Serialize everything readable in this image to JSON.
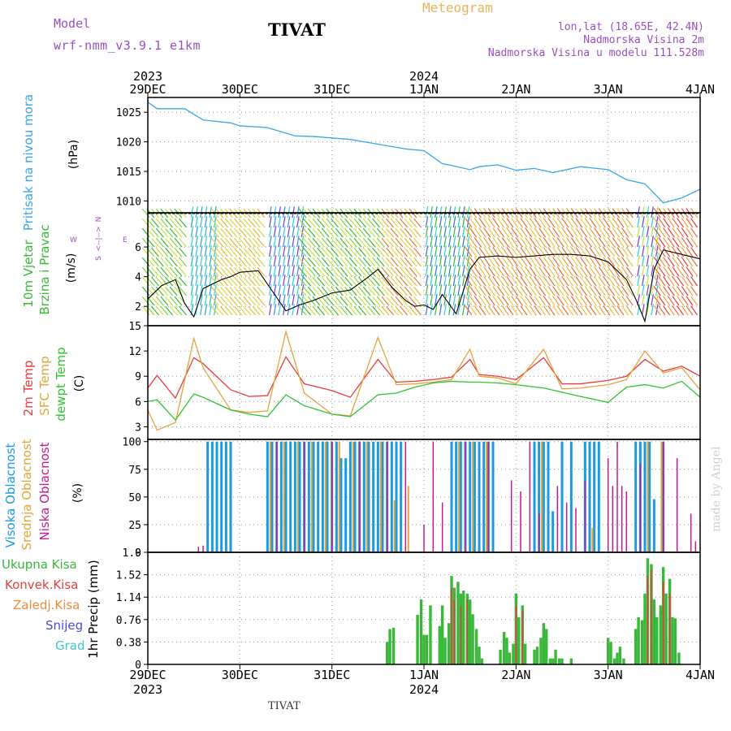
{
  "header": {
    "model_label": "Model",
    "model_name": "wrf-nmm_v3.9.1 e1km",
    "station": "TIVAT",
    "meteogram": "Meteogram",
    "lonlat": "lon,lat (18.65E, 42.4N)",
    "elevation": "Nadmorska Visina 2m",
    "model_elevation": "Nadmorska Visina u modelu 111.528m",
    "credit": "made by Angel",
    "footer_station": "TIVAT"
  },
  "colors": {
    "pressure": "#3aa6e8",
    "temp2m": "#ee3a3a",
    "sfc_temp": "#e3a53a",
    "dewpoint": "#2fc42f",
    "high_cloud": "#1a9be0",
    "mid_cloud": "#e3a53a",
    "low_cloud": "#c41c8c",
    "total_precip": "#3ab83a",
    "conv_precip": "#e04040",
    "purple": "#9b4fc4"
  },
  "time_axis": {
    "top_years": [
      "2023",
      "2024"
    ],
    "top_year_days": [
      0,
      3
    ],
    "bottom_years": [
      "2023",
      "2024"
    ],
    "bottom_year_days": [
      0,
      3
    ],
    "ticks": [
      "29DEC",
      "30DEC",
      "31DEC",
      "1JAN",
      "2JAN",
      "3JAN",
      "4JAN"
    ],
    "tick_days": [
      0,
      1,
      2,
      3,
      4,
      5,
      6
    ],
    "range_days": [
      0,
      6
    ]
  },
  "wind_compass": {
    "n": "N",
    "s": "S",
    "w": "W",
    "e": "E",
    "mid": "<--|-->"
  },
  "chart_data": [
    {
      "type": "line",
      "ylabel": "Pritisak na nivou mora",
      "units": "(hPa)",
      "ylim": [
        1008,
        1027.5
      ],
      "yticks": [
        "1010",
        "1015",
        "1020",
        "1025"
      ],
      "ytick_values": [
        1010,
        1015,
        1020,
        1025
      ],
      "series": [
        {
          "x": [
            0,
            0.1,
            0.4,
            0.6,
            0.9,
            1.0,
            1.3,
            1.6,
            1.8,
            2.2,
            2.5,
            2.8,
            3.0,
            3.2,
            3.3,
            3.5,
            3.6,
            3.8,
            4.0,
            4.2,
            4.4,
            4.7,
            5.0,
            5.2,
            5.4,
            5.6,
            5.8,
            6.0
          ],
          "y": [
            1026.7,
            1025.6,
            1025.6,
            1023.7,
            1023.2,
            1022.7,
            1022.4,
            1021.0,
            1020.9,
            1020.4,
            1019.6,
            1018.8,
            1018.5,
            1016.3,
            1016.0,
            1015.3,
            1015.8,
            1016.1,
            1015.2,
            1015.5,
            1014.8,
            1015.8,
            1015.3,
            1013.6,
            1012.9,
            1009.7,
            1010.5,
            1012.0
          ]
        }
      ]
    },
    {
      "type": "line",
      "ylabel_top": "10m Vjetar",
      "ylabel_bottom": "Brzina i Pravac",
      "units": "(m/s)",
      "ylim": [
        0.7,
        8.3
      ],
      "yticks": [
        "2",
        "4",
        "6"
      ],
      "ytick_values": [
        2,
        4,
        6
      ],
      "series": [
        {
          "name": "wind speed",
          "x": [
            0,
            0.15,
            0.3,
            0.4,
            0.5,
            0.6,
            0.7,
            0.8,
            0.9,
            1.0,
            1.2,
            1.4,
            1.5,
            1.65,
            1.8,
            2.0,
            2.2,
            2.4,
            2.5,
            2.65,
            2.8,
            2.9,
            3.0,
            3.1,
            3.2,
            3.35,
            3.5,
            3.6,
            3.8,
            4.0,
            4.2,
            4.4,
            4.6,
            4.8,
            5.0,
            5.2,
            5.3,
            5.4,
            5.5,
            5.6,
            5.8,
            6.0
          ],
          "y": [
            2.5,
            3.4,
            3.8,
            2.2,
            1.3,
            3.2,
            3.5,
            3.8,
            4.0,
            4.3,
            4.4,
            2.6,
            1.7,
            2.1,
            2.4,
            2.9,
            3.1,
            4.0,
            4.5,
            3.3,
            2.4,
            2.0,
            2.1,
            1.8,
            2.8,
            1.5,
            4.5,
            5.3,
            5.4,
            5.3,
            5.4,
            5.5,
            5.5,
            5.4,
            5.0,
            3.8,
            2.5,
            1.0,
            4.5,
            5.8,
            5.5,
            5.2
          ]
        }
      ]
    },
    {
      "type": "line",
      "ylabel_top": "2m Temp",
      "ylabel_mid": "SFC Temp",
      "ylabel_bottom": "dewpt Temp",
      "units": "(C)",
      "ylim": [
        1.5,
        15
      ],
      "yticks": [
        "3",
        "6",
        "9",
        "12",
        "15"
      ],
      "ytick_values": [
        3,
        6,
        9,
        12,
        15
      ],
      "series": [
        {
          "name": "2m Temp",
          "x": [
            0,
            0.1,
            0.3,
            0.5,
            0.6,
            0.9,
            1.1,
            1.3,
            1.5,
            1.7,
            2.0,
            2.2,
            2.5,
            2.7,
            2.9,
            3.1,
            3.3,
            3.5,
            3.6,
            3.8,
            4.0,
            4.3,
            4.5,
            4.7,
            5.0,
            5.2,
            5.4,
            5.6,
            5.8,
            6.0
          ],
          "y": [
            7.6,
            9.1,
            6.4,
            11.2,
            10.5,
            7.4,
            6.6,
            6.7,
            11.3,
            8.1,
            7.3,
            6.5,
            11.0,
            8.3,
            8.4,
            8.6,
            8.9,
            11.0,
            9.2,
            9.0,
            8.6,
            11.2,
            8.1,
            8.1,
            8.5,
            9.0,
            11.0,
            9.6,
            10.2,
            9.0
          ]
        },
        {
          "name": "SFC Temp",
          "x": [
            0,
            0.1,
            0.3,
            0.5,
            0.6,
            0.9,
            1.1,
            1.3,
            1.5,
            1.7,
            2.0,
            2.2,
            2.5,
            2.7,
            2.9,
            3.1,
            3.3,
            3.5,
            3.6,
            3.8,
            4.0,
            4.3,
            4.5,
            4.7,
            5.0,
            5.2,
            5.4,
            5.6,
            5.8,
            6.0
          ],
          "y": [
            5.0,
            2.6,
            3.5,
            13.5,
            10.0,
            5.0,
            4.7,
            4.9,
            14.3,
            7.0,
            4.5,
            4.3,
            13.6,
            8.0,
            8.1,
            8.3,
            8.6,
            12.2,
            9.0,
            8.8,
            8.1,
            12.2,
            7.5,
            7.6,
            8.0,
            8.6,
            12.0,
            9.4,
            10.0,
            7.4
          ]
        },
        {
          "name": "dewpt Temp",
          "x": [
            0,
            0.1,
            0.3,
            0.5,
            0.6,
            0.9,
            1.1,
            1.3,
            1.5,
            1.7,
            2.0,
            2.2,
            2.5,
            2.7,
            2.9,
            3.1,
            3.3,
            3.5,
            3.6,
            3.8,
            4.0,
            4.3,
            4.5,
            4.7,
            5.0,
            5.2,
            5.4,
            5.6,
            5.8,
            6.0
          ],
          "y": [
            6.0,
            6.2,
            3.8,
            6.9,
            6.5,
            5.0,
            4.5,
            4.2,
            6.8,
            5.5,
            4.5,
            4.2,
            6.8,
            7.0,
            7.7,
            8.2,
            8.4,
            8.3,
            8.3,
            8.2,
            8.0,
            7.6,
            7.1,
            6.6,
            5.9,
            7.7,
            8.0,
            7.6,
            8.4,
            6.5
          ]
        }
      ]
    },
    {
      "type": "bar",
      "ylabel_top": "Visoka Oblacnost",
      "ylabel_mid": "Srednja Oblacnost",
      "ylabel_bottom": "Niska Oblacnost",
      "units": "(%)",
      "ylim": [
        0,
        102
      ],
      "yticks": [
        "0",
        "25",
        "50",
        "75",
        "100"
      ],
      "ytick_values": [
        0,
        25,
        50,
        75,
        100
      ],
      "series": [
        {
          "name": "Visoka Oblacnost",
          "x": [
            0.65,
            0.7,
            0.75,
            0.8,
            0.85,
            0.9,
            1.3,
            1.35,
            1.4,
            1.45,
            1.5,
            1.55,
            1.6,
            1.65,
            1.7,
            1.75,
            1.8,
            1.85,
            1.9,
            1.95,
            2.0,
            2.05,
            2.1,
            2.15,
            2.2,
            2.25,
            2.3,
            2.35,
            2.4,
            2.45,
            2.5,
            2.55,
            2.6,
            2.65,
            2.7,
            2.75,
            3.3,
            3.35,
            3.4,
            3.45,
            3.5,
            3.55,
            3.6,
            3.65,
            3.7,
            3.75,
            4.2,
            4.25,
            4.3,
            4.35,
            4.4,
            4.5,
            4.6,
            4.75,
            4.8,
            4.85,
            4.9,
            5.3,
            5.35,
            5.4,
            5.45,
            5.5,
            5.6
          ],
          "values": [
            100,
            100,
            100,
            100,
            100,
            100,
            100,
            100,
            100,
            100,
            100,
            100,
            100,
            100,
            100,
            100,
            100,
            100,
            100,
            100,
            100,
            100,
            85,
            85,
            100,
            100,
            100,
            100,
            100,
            100,
            100,
            100,
            100,
            100,
            100,
            100,
            100,
            100,
            100,
            100,
            100,
            100,
            100,
            100,
            100,
            100,
            100,
            100,
            100,
            100,
            37,
            100,
            100,
            100,
            100,
            100,
            100,
            100,
            100,
            100,
            100,
            48,
            100
          ]
        },
        {
          "name": "Srednja Oblacnost",
          "x": [
            1.33,
            1.48,
            1.63,
            1.78,
            1.93,
            2.08,
            2.23,
            2.38,
            2.53,
            2.68,
            2.83,
            3.38,
            3.53,
            3.68,
            4.28,
            4.83,
            5.43,
            5.58
          ],
          "values": [
            100,
            100,
            100,
            100,
            100,
            100,
            100,
            100,
            100,
            47,
            60,
            100,
            100,
            100,
            100,
            22,
            100,
            100
          ]
        },
        {
          "name": "Niska Oblacnost",
          "x": [
            0.55,
            0.6,
            1.4,
            1.7,
            2.0,
            2.3,
            2.6,
            2.8,
            3.0,
            3.1,
            3.2,
            3.45,
            3.7,
            3.95,
            4.05,
            4.15,
            4.25,
            4.45,
            4.55,
            4.65,
            4.75,
            5.0,
            5.05,
            5.1,
            5.15,
            5.2,
            5.35,
            5.6,
            5.75,
            5.9,
            5.95
          ],
          "values": [
            5,
            6,
            100,
            100,
            100,
            100,
            100,
            100,
            25,
            100,
            45,
            100,
            100,
            65,
            55,
            100,
            35,
            60,
            45,
            40,
            65,
            85,
            60,
            100,
            60,
            55,
            80,
            100,
            85,
            35,
            10
          ]
        }
      ]
    },
    {
      "type": "bar",
      "ylabel": "1hr Precip (mm)",
      "legend": [
        "Ukupna Kisa",
        "Konvek.Kisa",
        "Zaledj.Kisa",
        "Snijeg",
        "Grad"
      ],
      "ylim": [
        0,
        1.9
      ],
      "yticks": [
        "0",
        "0.38",
        "0.76",
        "1.14",
        "1.52",
        "1.9"
      ],
      "ytick_values": [
        0,
        0.38,
        0.76,
        1.14,
        1.52,
        1.9
      ],
      "series": [
        {
          "name": "Ukupna Kisa",
          "x": [
            2.6,
            2.63,
            2.67,
            2.93,
            2.97,
            3.0,
            3.03,
            3.07,
            3.17,
            3.2,
            3.23,
            3.27,
            3.3,
            3.33,
            3.37,
            3.4,
            3.43,
            3.47,
            3.5,
            3.53,
            3.57,
            3.6,
            3.63,
            3.83,
            3.87,
            3.9,
            3.93,
            3.97,
            4.0,
            4.03,
            4.07,
            4.1,
            4.2,
            4.23,
            4.27,
            4.3,
            4.33,
            4.37,
            4.4,
            4.43,
            4.47,
            4.5,
            4.6,
            5.0,
            5.03,
            5.07,
            5.1,
            5.13,
            5.17,
            5.3,
            5.33,
            5.37,
            5.4,
            5.43,
            5.47,
            5.5,
            5.53,
            5.57,
            5.6,
            5.63,
            5.67,
            5.7,
            5.73,
            5.77
          ],
          "values": [
            0.38,
            0.6,
            0.62,
            0.84,
            1.1,
            0.5,
            0.5,
            1.0,
            0.65,
            1.0,
            0.45,
            0.7,
            1.5,
            1.3,
            1.4,
            1.2,
            1.25,
            1.2,
            1.1,
            0.85,
            0.6,
            0.3,
            0.1,
            0.25,
            0.55,
            0.45,
            0.2,
            0.35,
            1.2,
            0.8,
            1.0,
            0.35,
            0.25,
            0.3,
            0.45,
            0.7,
            0.6,
            0.1,
            0.1,
            0.25,
            0.1,
            0.1,
            0.1,
            0.45,
            0.38,
            0.1,
            0.2,
            0.3,
            0.1,
            0.6,
            0.8,
            0.75,
            1.2,
            1.8,
            1.7,
            1.1,
            0.8,
            1.0,
            1.65,
            1.2,
            1.45,
            0.8,
            0.78,
            0.2
          ]
        },
        {
          "name": "Konvek.Kisa",
          "x": [
            3.3,
            3.33,
            3.4,
            3.47,
            4.0,
            4.07,
            5.43,
            5.47,
            5.6,
            5.67
          ],
          "values": [
            1.3,
            1.1,
            1.0,
            1.1,
            1.0,
            0.9,
            1.5,
            1.6,
            1.4,
            1.2
          ]
        }
      ]
    }
  ]
}
